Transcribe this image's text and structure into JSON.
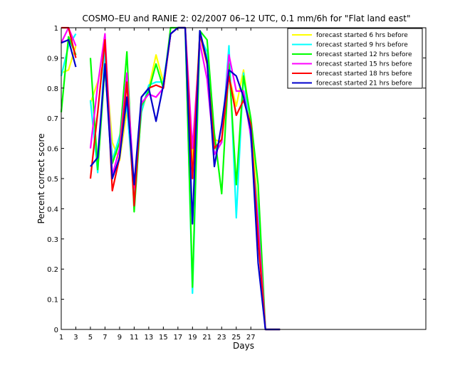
{
  "chart_data": {
    "type": "line",
    "title": "COSMO–EU and RANIE 2: 02/2007 06–12 UTC, 0.1 mm/6h for \"Flat land east\"",
    "xlabel": "Days",
    "ylabel": "Percent correct score",
    "xlim": [
      1,
      51
    ],
    "ylim": [
      0,
      1
    ],
    "xticks": [
      1,
      3,
      5,
      7,
      9,
      11,
      13,
      15,
      17,
      19,
      21,
      23,
      25,
      27
    ],
    "yticks": [
      0,
      0.1,
      0.2,
      0.3,
      0.4,
      0.5,
      0.6,
      0.7,
      0.8,
      0.9,
      1
    ],
    "ytick_labels": [
      "0",
      "0.1",
      "0.2",
      "0.3",
      "0.4",
      "0.5",
      "0.6",
      "0.7",
      "0.8",
      "0.9",
      "1"
    ],
    "grid": false,
    "legend_position": "top-right",
    "series": [
      {
        "name": "forecast started 6 hrs before",
        "color": "#ffff00",
        "values": [
          0.85,
          0.86,
          0.94,
          null,
          0.75,
          0.82,
          0.9,
          0.62,
          0.56,
          0.73,
          0.48,
          0.72,
          0.8,
          0.91,
          0.82,
          0.98,
          1.0,
          1.0,
          0.55,
          0.98,
          0.9,
          0.63,
          0.62,
          0.84,
          0.74,
          0.86,
          0.68,
          0.4,
          0.0,
          0.0,
          0.0
        ]
      },
      {
        "name": "forecast started 9 hrs before",
        "color": "#00ffff",
        "values": [
          0.84,
          0.94,
          0.98,
          null,
          0.76,
          0.52,
          0.93,
          0.56,
          0.64,
          0.74,
          0.44,
          0.72,
          0.81,
          0.82,
          0.82,
          0.98,
          1.0,
          1.0,
          0.12,
          0.97,
          0.92,
          0.58,
          0.62,
          0.94,
          0.37,
          0.85,
          0.63,
          0.38,
          0.0,
          0.0,
          0.0
        ]
      },
      {
        "name": "forecast started 12 hrs before",
        "color": "#00ff00",
        "values": [
          0.72,
          0.97,
          0.91,
          null,
          0.9,
          0.53,
          0.87,
          0.55,
          0.62,
          0.92,
          0.39,
          0.74,
          0.79,
          0.88,
          0.8,
          1.0,
          1.0,
          1.0,
          0.14,
          0.99,
          0.96,
          0.65,
          0.45,
          0.88,
          0.48,
          0.84,
          0.7,
          0.48,
          0.0,
          0.0,
          0.0
        ]
      },
      {
        "name": "forecast started 15 hrs before",
        "color": "#ff00ff",
        "values": [
          0.95,
          1.0,
          0.94,
          null,
          0.6,
          0.81,
          0.98,
          0.51,
          0.6,
          0.85,
          0.47,
          0.75,
          0.78,
          0.77,
          0.8,
          0.98,
          1.0,
          1.0,
          0.6,
          0.95,
          0.83,
          0.58,
          0.62,
          0.91,
          0.79,
          0.79,
          0.64,
          0.35,
          0.0,
          0.0,
          0.0
        ]
      },
      {
        "name": "forecast started 18 hrs before",
        "color": "#ff0000",
        "values": [
          1.0,
          1.0,
          0.9,
          null,
          0.5,
          0.72,
          0.96,
          0.46,
          0.57,
          0.82,
          0.41,
          0.77,
          0.8,
          0.81,
          0.8,
          0.98,
          1.0,
          1.0,
          0.5,
          0.98,
          0.88,
          0.6,
          0.63,
          0.84,
          0.71,
          0.76,
          0.68,
          0.3,
          0.0,
          0.0,
          0.0
        ]
      },
      {
        "name": "forecast started 21 hrs before",
        "color": "#0000cc",
        "values": [
          0.95,
          0.96,
          0.87,
          null,
          0.54,
          0.57,
          0.88,
          0.5,
          0.57,
          0.77,
          0.48,
          0.77,
          0.8,
          0.69,
          0.81,
          0.98,
          1.0,
          1.0,
          0.35,
          0.99,
          0.89,
          0.54,
          0.68,
          0.86,
          0.84,
          0.77,
          0.66,
          0.22,
          0.0,
          0.0,
          0.0
        ]
      }
    ]
  }
}
